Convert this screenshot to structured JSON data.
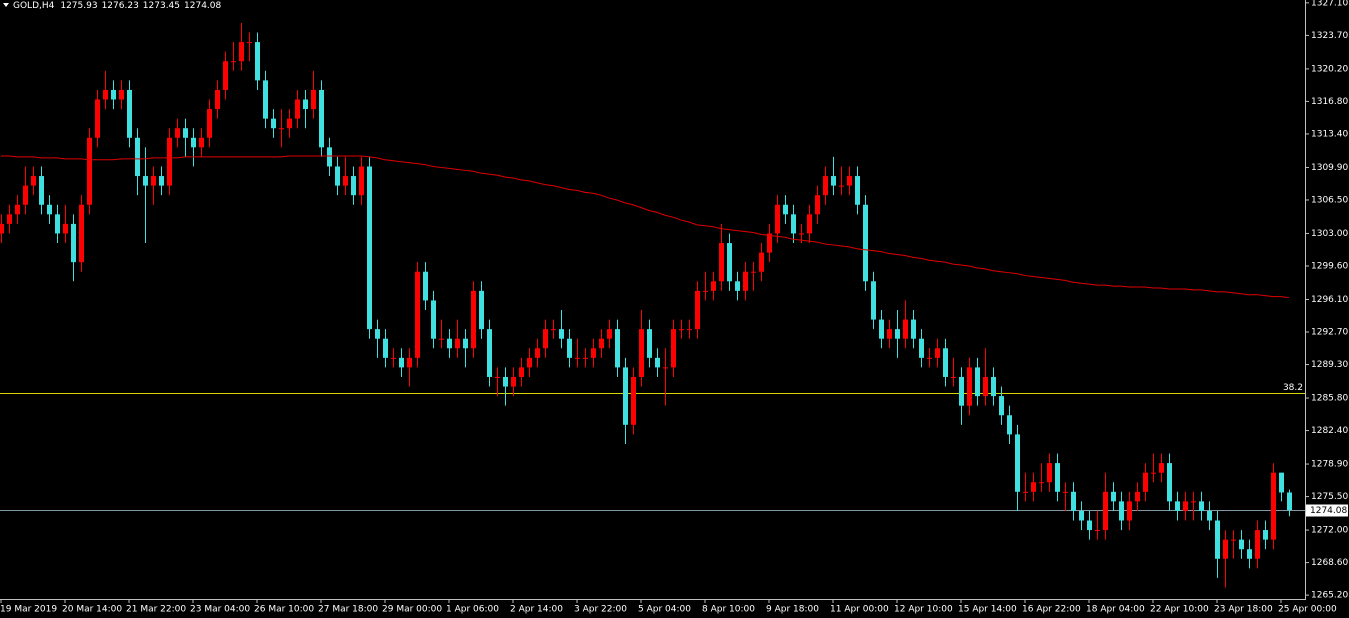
{
  "chart_data": {
    "type": "candlestick",
    "title": "GOLD,H4",
    "categories": [
      "19 Mar 2019",
      null,
      null,
      null,
      null,
      null,
      null,
      null,
      "20 Mar 14:00",
      null,
      null,
      null,
      null,
      null,
      null,
      null,
      "21 Mar 22:00",
      null,
      null,
      null,
      null,
      null,
      null,
      null,
      "23 Mar 04:00",
      null,
      null,
      null,
      null,
      null,
      null,
      null,
      "26 Mar 10:00",
      null,
      null,
      null,
      null,
      null,
      null,
      null,
      "27 Mar 18:00",
      null,
      null,
      null,
      null,
      null,
      null,
      null,
      "29 Mar 00:00",
      null,
      null,
      null,
      null,
      null,
      null,
      null,
      "1 Apr 06:00",
      null,
      null,
      null,
      null,
      null,
      null,
      null,
      "2 Apr 14:00",
      null,
      null,
      null,
      null,
      null,
      null,
      null,
      "3 Apr 22:00",
      null,
      null,
      null,
      null,
      null,
      null,
      null,
      "5 Apr 04:00",
      null,
      null,
      null,
      null,
      null,
      null,
      null,
      "8 Apr 10:00",
      null,
      null,
      null,
      null,
      null,
      null,
      null,
      "9 Apr 18:00",
      null,
      null,
      null,
      null,
      null,
      null,
      null,
      "11 Apr 00:00",
      null,
      null,
      null,
      null,
      null,
      null,
      null,
      "12 Apr 10:00",
      null,
      null,
      null,
      null,
      null,
      null,
      null,
      "15 Apr 14:00",
      null,
      null,
      null,
      null,
      null,
      null,
      null,
      "16 Apr 22:00",
      null,
      null,
      null,
      null,
      null,
      null,
      null,
      "18 Apr 04:00",
      null,
      null,
      null,
      null,
      null,
      null,
      null,
      "22 Apr 10:00",
      null,
      null,
      null,
      null,
      null,
      null,
      null,
      "23 Apr 18:00",
      null,
      null,
      null,
      null,
      null,
      null,
      null,
      "25 Apr 00:00",
      null
    ],
    "open": [
      1303,
      1304,
      1305,
      1306,
      1308,
      1309,
      1306,
      1305,
      1303,
      1304,
      1300,
      1306,
      1313,
      1317,
      1318,
      1317,
      1318,
      1313,
      1309,
      1308,
      1309,
      1308,
      1313,
      1314,
      1313,
      1312,
      1313,
      1316,
      1318,
      1321,
      1321,
      1323,
      1323,
      1319,
      1315,
      1314,
      1314,
      1315,
      1317,
      1316,
      1318,
      1312,
      1310,
      1308,
      1309,
      1307,
      1310,
      1293,
      1292,
      1290,
      1290,
      1289,
      1290,
      1299,
      1296,
      1292,
      1292,
      1291,
      1292,
      1291,
      1297,
      1293,
      1288,
      1288,
      1287,
      1288,
      1289,
      1290,
      1291,
      1293,
      1293,
      1292,
      1290,
      1290,
      1290,
      1291,
      1292,
      1293,
      1289,
      1283,
      1288,
      1293,
      1290,
      1289,
      1289,
      1293,
      1293,
      1293,
      1297,
      1297,
      1298,
      1302,
      1298,
      1297,
      1299,
      1299,
      1301,
      1303,
      1306,
      1305,
      1303,
      1303,
      1305,
      1307,
      1309,
      1308,
      1308,
      1309,
      1306,
      1298,
      1294,
      1292,
      1293,
      1292,
      1294,
      1292,
      1290,
      1290,
      1291,
      1288,
      1288,
      1285,
      1289,
      1286,
      1288,
      1286,
      1284,
      1282,
      1276,
      1276,
      1277,
      1277,
      1279,
      1276,
      1276,
      1274,
      1273,
      1272,
      1272,
      1276,
      1275,
      1273,
      1275,
      1276,
      1278,
      1278,
      1279,
      1275,
      1274,
      1275,
      1275,
      1274,
      1273,
      1269,
      1271,
      1271,
      1270,
      1269,
      1272,
      1271,
      1278,
      1275.93
    ],
    "high": [
      1305,
      1306,
      1307,
      1310,
      1310,
      1310,
      1307,
      1306,
      1306,
      1305,
      1307,
      1314,
      1318,
      1320,
      1319,
      1319,
      1319,
      1314,
      1312,
      1310,
      1310,
      1314,
      1315,
      1315,
      1314,
      1314,
      1317,
      1319,
      1322,
      1323,
      1325,
      1324,
      1324,
      1320,
      1316,
      1316,
      1316,
      1318,
      1318,
      1320,
      1319,
      1313,
      1311,
      1311,
      1310,
      1311,
      1311,
      1294,
      1293,
      1291,
      1291,
      1291,
      1300,
      1300,
      1297,
      1294,
      1293,
      1294,
      1293,
      1298,
      1298,
      1294,
      1289,
      1289,
      1289,
      1290,
      1291,
      1292,
      1294,
      1294,
      1295,
      1293,
      1292,
      1291,
      1292,
      1293,
      1294,
      1294,
      1290,
      1289,
      1295,
      1294,
      1291,
      1291,
      1294,
      1294,
      1294,
      1298,
      1299,
      1299,
      1304,
      1303,
      1299,
      1300,
      1300,
      1302,
      1304,
      1307,
      1307,
      1306,
      1304,
      1306,
      1308,
      1310,
      1311,
      1310,
      1310,
      1310,
      1307,
      1299,
      1295,
      1294,
      1295,
      1296,
      1295,
      1293,
      1291,
      1292,
      1292,
      1290,
      1289,
      1290,
      1290,
      1291,
      1289,
      1287,
      1285,
      1283,
      1278,
      1278,
      1279,
      1280,
      1280,
      1277,
      1277,
      1275,
      1274,
      1274,
      1278,
      1277,
      1276,
      1276,
      1277,
      1279,
      1280,
      1280,
      1280,
      1276,
      1276,
      1276,
      1276,
      1275,
      1274,
      1272,
      1272,
      1272,
      1271,
      1273,
      1273,
      1279,
      1278,
      1276.23
    ],
    "low": [
      1302,
      1303,
      1304,
      1305,
      1307,
      1305,
      1304,
      1302,
      1302,
      1298,
      1299,
      1305,
      1312,
      1316,
      1316,
      1316,
      1312,
      1307,
      1302,
      1306,
      1307,
      1307,
      1312,
      1311,
      1310,
      1311,
      1312,
      1315,
      1317,
      1320,
      1320,
      1321,
      1318,
      1314,
      1313,
      1312,
      1313,
      1314,
      1314,
      1315,
      1311,
      1309,
      1307,
      1307,
      1306,
      1306,
      1292,
      1290,
      1289,
      1289,
      1288,
      1287,
      1289,
      1295,
      1291,
      1291,
      1290,
      1290,
      1289,
      1290,
      1292,
      1287,
      1286,
      1285,
      1286,
      1287,
      1288,
      1289,
      1290,
      1292,
      1291,
      1289,
      1289,
      1289,
      1289,
      1290,
      1291,
      1288,
      1281,
      1282,
      1287,
      1289,
      1288,
      1285,
      1288,
      1292,
      1292,
      1292,
      1296,
      1296,
      1297,
      1297,
      1296,
      1296,
      1297,
      1298,
      1300,
      1302,
      1304,
      1302,
      1302,
      1302,
      1304,
      1306,
      1307,
      1307,
      1307,
      1305,
      1297,
      1293,
      1291,
      1291,
      1290,
      1291,
      1291,
      1289,
      1289,
      1289,
      1287,
      1287,
      1283,
      1284,
      1285,
      1285,
      1285,
      1283,
      1281,
      1274,
      1275,
      1275,
      1276,
      1276,
      1275,
      1274,
      1273,
      1272,
      1271,
      1271,
      1271,
      1274,
      1272,
      1272,
      1274,
      1275,
      1277,
      1277,
      1274,
      1273,
      1273,
      1273,
      1273,
      1272,
      1267,
      1266,
      1269,
      1269,
      1268,
      1268,
      1270,
      1270,
      1275,
      1273.45
    ],
    "close": [
      1304,
      1305,
      1306,
      1308,
      1309,
      1306,
      1305,
      1303,
      1304,
      1300,
      1306,
      1313,
      1317,
      1318,
      1317,
      1318,
      1313,
      1309,
      1308,
      1309,
      1308,
      1313,
      1314,
      1313,
      1312,
      1313,
      1316,
      1318,
      1321,
      1321,
      1323,
      1323,
      1319,
      1315,
      1314,
      1314,
      1315,
      1317,
      1316,
      1318,
      1312,
      1310,
      1308,
      1309,
      1307,
      1310,
      1293,
      1292,
      1290,
      1290,
      1289,
      1290,
      1299,
      1296,
      1292,
      1292,
      1291,
      1292,
      1291,
      1297,
      1293,
      1288,
      1288,
      1287,
      1288,
      1289,
      1290,
      1291,
      1293,
      1293,
      1292,
      1290,
      1290,
      1290,
      1291,
      1292,
      1293,
      1289,
      1283,
      1288,
      1293,
      1290,
      1289,
      1289,
      1293,
      1293,
      1293,
      1297,
      1297,
      1298,
      1302,
      1298,
      1297,
      1299,
      1299,
      1301,
      1303,
      1306,
      1305,
      1303,
      1303,
      1305,
      1307,
      1309,
      1308,
      1308,
      1309,
      1306,
      1298,
      1294,
      1292,
      1293,
      1292,
      1294,
      1292,
      1290,
      1290,
      1291,
      1288,
      1288,
      1285,
      1289,
      1286,
      1288,
      1286,
      1284,
      1282,
      1276,
      1276,
      1277,
      1277,
      1279,
      1276,
      1276,
      1274,
      1273,
      1272,
      1272,
      1276,
      1275,
      1273,
      1275,
      1276,
      1278,
      1278,
      1279,
      1275,
      1274,
      1275,
      1275,
      1274,
      1273,
      1269,
      1271,
      1271,
      1270,
      1269,
      1272,
      1271,
      1278,
      1275.93,
      1274.08
    ],
    "up_color": "#ff0000",
    "down_color": "#40e0e0",
    "series": [
      {
        "type": "line",
        "color": "#e00000",
        "values": [
          1311.1,
          1311.1,
          1311.0,
          1311.0,
          1311.0,
          1310.9,
          1310.9,
          1310.9,
          1310.8,
          1310.8,
          1310.8,
          1310.7,
          1310.7,
          1310.7,
          1310.7,
          1310.8,
          1310.8,
          1310.8,
          1310.8,
          1310.9,
          1310.9,
          1310.9,
          1310.9,
          1311.0,
          1311.0,
          1311.0,
          1311.0,
          1311.0,
          1311.0,
          1311.0,
          1311.0,
          1311.0,
          1311.0,
          1311.0,
          1311.0,
          1311.0,
          1311.1,
          1311.1,
          1311.1,
          1311.1,
          1311.1,
          1311.1,
          1311.1,
          1311.1,
          1311.1,
          1311.1,
          1311.0,
          1310.9,
          1310.7,
          1310.6,
          1310.5,
          1310.4,
          1310.3,
          1310.2,
          1310.0,
          1309.9,
          1309.8,
          1309.7,
          1309.6,
          1309.5,
          1309.3,
          1309.2,
          1309.1,
          1308.9,
          1308.8,
          1308.6,
          1308.5,
          1308.3,
          1308.1,
          1308.0,
          1307.8,
          1307.6,
          1307.5,
          1307.3,
          1307.2,
          1307.0,
          1306.7,
          1306.5,
          1306.2,
          1306.0,
          1305.7,
          1305.4,
          1305.2,
          1304.9,
          1304.7,
          1304.4,
          1304.2,
          1303.9,
          1303.8,
          1303.7,
          1303.5,
          1303.4,
          1303.3,
          1303.2,
          1303.1,
          1302.9,
          1302.8,
          1302.7,
          1302.6,
          1302.4,
          1302.3,
          1302.2,
          1302.1,
          1301.9,
          1301.8,
          1301.7,
          1301.6,
          1301.4,
          1301.3,
          1301.2,
          1301.1,
          1300.9,
          1300.8,
          1300.7,
          1300.5,
          1300.4,
          1300.2,
          1300.1,
          1300.0,
          1299.8,
          1299.7,
          1299.6,
          1299.4,
          1299.3,
          1299.1,
          1299.0,
          1298.9,
          1298.8,
          1298.6,
          1298.5,
          1298.4,
          1298.3,
          1298.2,
          1298.1,
          1297.9,
          1297.8,
          1297.7,
          1297.6,
          1297.6,
          1297.5,
          1297.5,
          1297.4,
          1297.4,
          1297.4,
          1297.3,
          1297.3,
          1297.2,
          1297.2,
          1297.2,
          1297.1,
          1297.1,
          1297.0,
          1296.9,
          1296.9,
          1296.8,
          1296.7,
          1296.6,
          1296.6,
          1296.5,
          1296.4,
          1296.4,
          1296.3
        ]
      }
    ],
    "ylim": [
      1264.9,
      1327.4
    ],
    "yticks": [
      {
        "value": 1327.1,
        "label": "1327.10"
      },
      {
        "value": 1323.7,
        "label": "1323.70"
      },
      {
        "value": 1320.2,
        "label": "1320.20"
      },
      {
        "value": 1316.8,
        "label": "1316.80"
      },
      {
        "value": 1313.4,
        "label": "1313.40"
      },
      {
        "value": 1309.9,
        "label": "1309.90"
      },
      {
        "value": 1306.5,
        "label": "1306.50"
      },
      {
        "value": 1303,
        "label": "1303.00"
      },
      {
        "value": 1299.6,
        "label": "1299.60"
      },
      {
        "value": 1296.1,
        "label": "1296.10"
      },
      {
        "value": 1292.7,
        "label": "1292.70"
      },
      {
        "value": 1289.3,
        "label": "1289.30"
      },
      {
        "value": 1285.8,
        "label": "1285.80"
      },
      {
        "value": 1282.4,
        "label": "1282.40"
      },
      {
        "value": 1278.9,
        "label": "1278.90"
      },
      {
        "value": 1275.5,
        "label": "1275.50"
      },
      {
        "value": 1272,
        "label": "1272.00"
      },
      {
        "value": 1268.6,
        "label": "1268.60"
      },
      {
        "value": 1265.2,
        "label": "1265.20"
      }
    ],
    "levels": [
      {
        "value": 1286.3,
        "label": "38.2",
        "color": "#d8d800"
      }
    ],
    "price_line": {
      "value": 1274.08,
      "color": "#7f98a8"
    }
  }
}
